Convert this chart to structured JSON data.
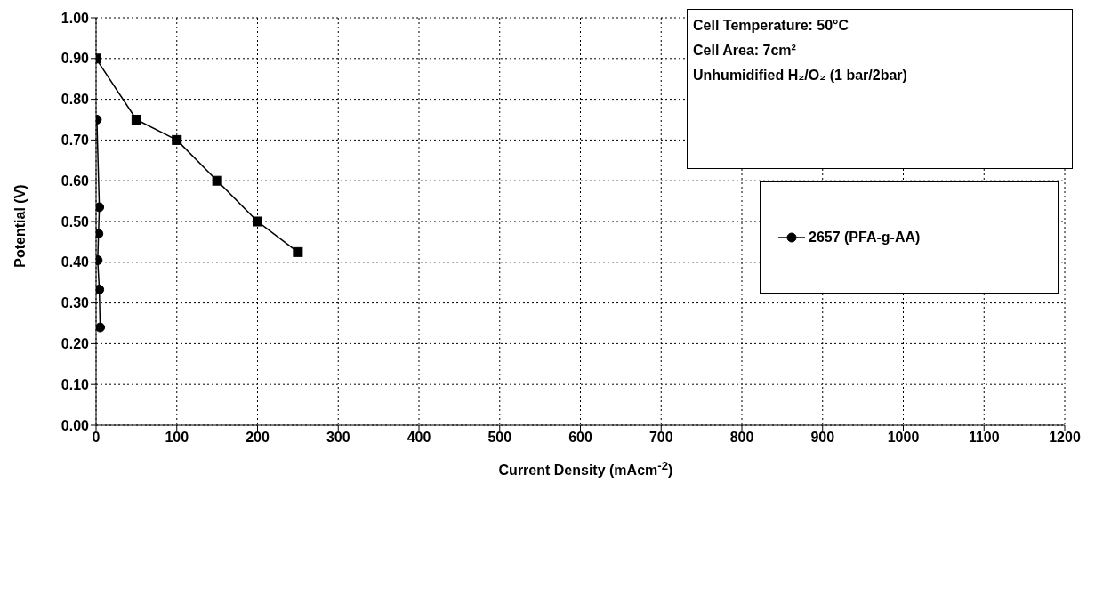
{
  "chart_data": {
    "type": "line",
    "xlabel": "Current Density (mAcm$^{-2}$)",
    "ylabel": "Potential (V)",
    "annotations": [
      "Cell Temperature: 50°C",
      "Cell Area: 7cm²",
      "Unhumidified H₂/O₂ (1 bar/2bar)"
    ],
    "series": [
      {
        "name": "2657 (PFA-g-AA)",
        "color": "#000000",
        "marker": "circle",
        "x": [
          1,
          4,
          3,
          2,
          4,
          5
        ],
        "values": [
          0.75,
          0.535,
          0.47,
          0.405,
          0.333,
          0.24
        ]
      },
      {
        "color": "#000000",
        "marker": "square",
        "x": [
          0,
          50,
          100,
          150,
          200,
          250
        ],
        "values": [
          0.9,
          0.75,
          0.7,
          0.6,
          0.5,
          0.425
        ]
      }
    ],
    "xlim": [
      0,
      1200
    ],
    "xticks": [
      0,
      100,
      200,
      300,
      400,
      500,
      600,
      700,
      800,
      900,
      1000,
      1100,
      1200
    ],
    "ylim": [
      0,
      1
    ],
    "yticks": [
      {
        "value": 0,
        "label": "0.00"
      },
      {
        "value": 0.1,
        "label": "0.10"
      },
      {
        "value": 0.2,
        "label": "0.20"
      },
      {
        "value": 0.3,
        "label": "0.30"
      },
      {
        "value": 0.4,
        "label": "0.40"
      },
      {
        "value": 0.5,
        "label": "0.50"
      },
      {
        "value": 0.6,
        "label": "0.60"
      },
      {
        "value": 0.7,
        "label": "0.70"
      },
      {
        "value": 0.8,
        "label": "0.80"
      },
      {
        "value": 0.9,
        "label": "0.90"
      },
      {
        "value": 1,
        "label": "1.00"
      }
    ],
    "grid": true,
    "legend": "right",
    "line_style": "solid"
  }
}
